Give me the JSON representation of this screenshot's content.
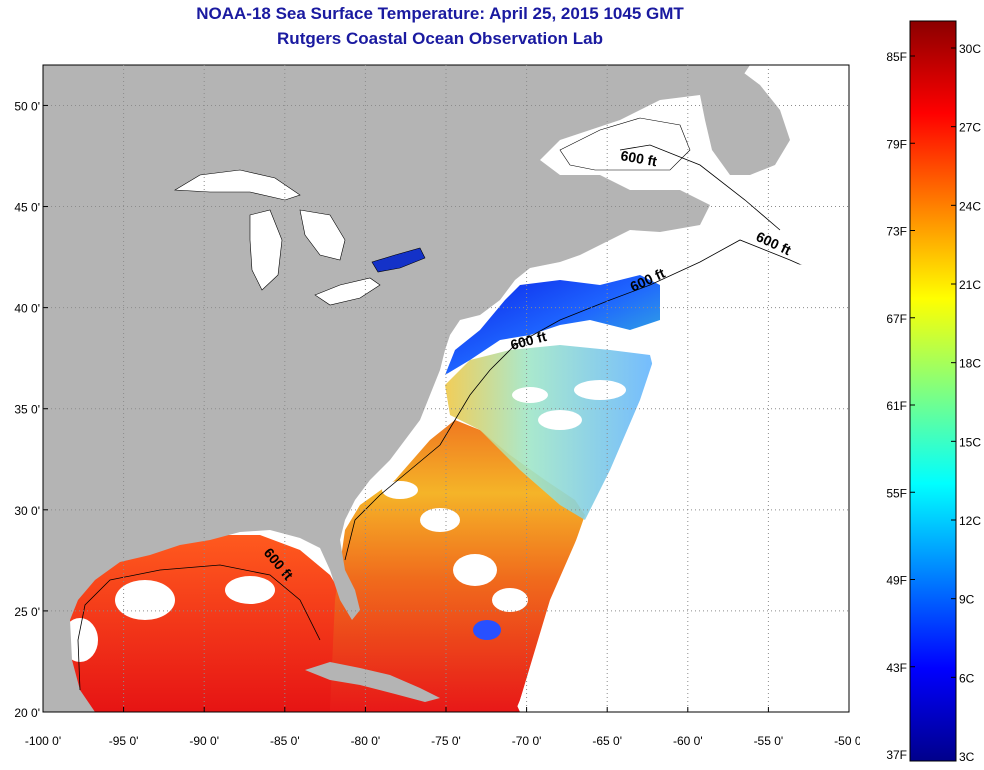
{
  "title": "NOAA-18 Sea Surface Temperature:  April 25, 2015 1045 GMT",
  "subtitle": "Rutgers Coastal Ocean Observation Lab",
  "map": {
    "lon_ticks": [
      "-100 0'",
      "-95 0'",
      "-90 0'",
      "-85 0'",
      "-80 0'",
      "-75 0'",
      "-70 0'",
      "-65 0'",
      "-60 0'",
      "-55 0'",
      "-50 0'"
    ],
    "lat_ticks": [
      "50 0'",
      "45 0'",
      "40 0'",
      "35 0'",
      "30 0'",
      "25 0'",
      "20 0'"
    ],
    "lon_range": [
      -100,
      -50
    ],
    "lat_range": [
      20,
      52
    ],
    "contour_label": "600 ft",
    "colors": {
      "land": "#b4b4b4",
      "cloud": "#ffffff",
      "grid": "#8c8c8c"
    }
  },
  "colorbar": {
    "fahrenheit_labels": [
      "85F",
      "79F",
      "73F",
      "67F",
      "61F",
      "55F",
      "49F",
      "43F",
      "37F"
    ],
    "celsius_labels": [
      "30C",
      "27C",
      "24C",
      "21C",
      "18C",
      "15C",
      "12C",
      "9C",
      "6C",
      "3C"
    ],
    "gradient": [
      "#8b0000",
      "#ff0000",
      "#ff8000",
      "#ffff00",
      "#80ff80",
      "#00ffff",
      "#0080ff",
      "#0000ff",
      "#00008b"
    ]
  }
}
